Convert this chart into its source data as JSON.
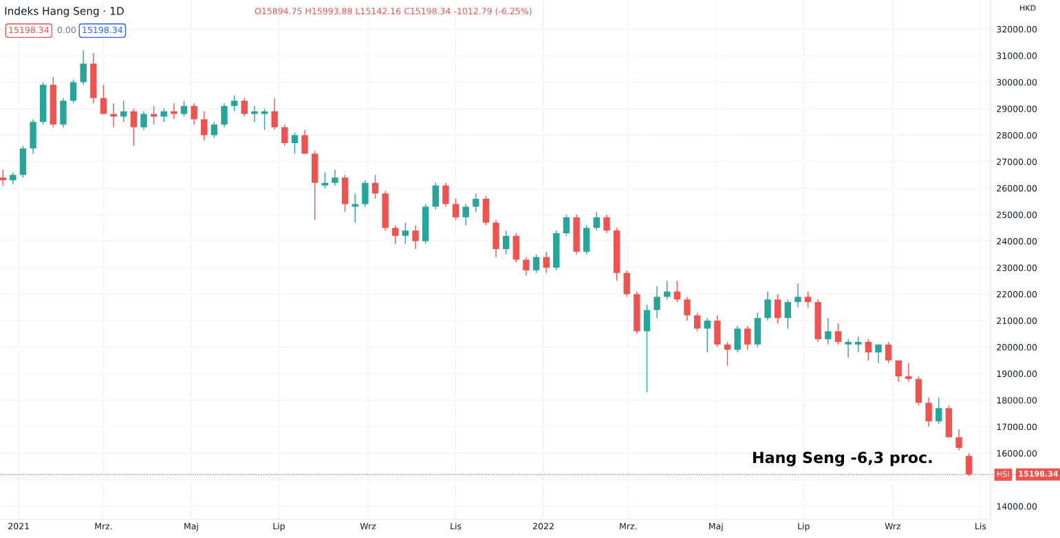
{
  "chart_data": {
    "type": "candlestick",
    "title": "Indeks Hang Seng · 1D",
    "annotations": [
      "O15894.75 H15993.88 L15142.16 C15198.34 -1012.79 (-6.25%)",
      "15198.34",
      "0.00",
      "15198.34",
      "HKD",
      "HSI",
      "Hang Seng -6,3 proc."
    ],
    "x": [
      "2020-12-21",
      "2020-12-28",
      "2021-01-04",
      "2021-01-11",
      "2021-01-18",
      "2021-01-25",
      "2021-02-01",
      "2021-02-08",
      "2021-02-15",
      "2021-02-22",
      "2021-03-01",
      "2021-03-08",
      "2021-03-15",
      "2021-03-22",
      "2021-03-29",
      "2021-04-05",
      "2021-04-12",
      "2021-04-19",
      "2021-04-26",
      "2021-05-03",
      "2021-05-10",
      "2021-05-17",
      "2021-05-24",
      "2021-05-31",
      "2021-06-07",
      "2021-06-14",
      "2021-06-21",
      "2021-06-28",
      "2021-07-05",
      "2021-07-12",
      "2021-07-19",
      "2021-07-26",
      "2021-08-02",
      "2021-08-09",
      "2021-08-16",
      "2021-08-23",
      "2021-08-30",
      "2021-09-06",
      "2021-09-13",
      "2021-09-20",
      "2021-09-27",
      "2021-10-04",
      "2021-10-11",
      "2021-10-18",
      "2021-10-25",
      "2021-11-01",
      "2021-11-08",
      "2021-11-15",
      "2021-11-22",
      "2021-11-29",
      "2021-12-06",
      "2021-12-13",
      "2021-12-20",
      "2021-12-27",
      "2022-01-03",
      "2022-01-10",
      "2022-01-17",
      "2022-01-24",
      "2022-01-31",
      "2022-02-07",
      "2022-02-14",
      "2022-02-21",
      "2022-02-28",
      "2022-03-07",
      "2022-03-14",
      "2022-03-21",
      "2022-03-28",
      "2022-04-04",
      "2022-04-11",
      "2022-04-18",
      "2022-04-25",
      "2022-05-02",
      "2022-05-09",
      "2022-05-16",
      "2022-05-23",
      "2022-05-30",
      "2022-06-06",
      "2022-06-13",
      "2022-06-20",
      "2022-06-27",
      "2022-07-04",
      "2022-07-11",
      "2022-07-18",
      "2022-07-25",
      "2022-08-01",
      "2022-08-08",
      "2022-08-15",
      "2022-08-22",
      "2022-08-29",
      "2022-09-05",
      "2022-09-12",
      "2022-09-19",
      "2022-09-26",
      "2022-10-03",
      "2022-10-10",
      "2022-10-17",
      "2022-10-24"
    ],
    "ohlc": [
      [
        26400,
        26700,
        26100,
        26300
      ],
      [
        26300,
        26600,
        26150,
        26500
      ],
      [
        26500,
        27600,
        26400,
        27500
      ],
      [
        27500,
        28600,
        27300,
        28500
      ],
      [
        28500,
        30000,
        28400,
        29900
      ],
      [
        29900,
        30200,
        28300,
        28400
      ],
      [
        28400,
        29400,
        28300,
        29300
      ],
      [
        29300,
        30100,
        29200,
        30000
      ],
      [
        30000,
        31200,
        29900,
        30700
      ],
      [
        30700,
        31100,
        29200,
        29400
      ],
      [
        29400,
        29900,
        28800,
        28800
      ],
      [
        28800,
        29200,
        28300,
        28700
      ],
      [
        28700,
        29300,
        28500,
        28900
      ],
      [
        28900,
        29000,
        27600,
        28300
      ],
      [
        28300,
        28900,
        28200,
        28800
      ],
      [
        28800,
        29100,
        28400,
        28700
      ],
      [
        28700,
        29000,
        28500,
        28900
      ],
      [
        28900,
        29200,
        28600,
        28800
      ],
      [
        28800,
        29300,
        28700,
        29100
      ],
      [
        29100,
        29200,
        28400,
        28600
      ],
      [
        28600,
        28900,
        27800,
        28000
      ],
      [
        28000,
        28500,
        27900,
        28400
      ],
      [
        28400,
        29200,
        28300,
        29100
      ],
      [
        29100,
        29500,
        28900,
        29300
      ],
      [
        29300,
        29400,
        28700,
        28800
      ],
      [
        28800,
        29100,
        28500,
        28900
      ],
      [
        28800,
        29000,
        28200,
        28900
      ],
      [
        28900,
        29400,
        28200,
        28300
      ],
      [
        28300,
        28400,
        27600,
        27700
      ],
      [
        27700,
        28100,
        27300,
        28000
      ],
      [
        28000,
        28200,
        27300,
        27300
      ],
      [
        27300,
        27400,
        24800,
        26200
      ],
      [
        26100,
        26600,
        26000,
        26200
      ],
      [
        26200,
        26700,
        26100,
        26400
      ],
      [
        26400,
        26500,
        25100,
        25400
      ],
      [
        25300,
        25800,
        24700,
        25400
      ],
      [
        25400,
        26300,
        25300,
        26200
      ],
      [
        26200,
        26500,
        25600,
        25800
      ],
      [
        25800,
        25900,
        24400,
        24500
      ],
      [
        24500,
        24600,
        23900,
        24200
      ],
      [
        24200,
        24700,
        23900,
        24400
      ],
      [
        24400,
        24600,
        23700,
        24000
      ],
      [
        24000,
        25400,
        23900,
        25300
      ],
      [
        25300,
        26200,
        25200,
        26100
      ],
      [
        26100,
        26200,
        25300,
        25400
      ],
      [
        25400,
        25600,
        24800,
        24900
      ],
      [
        24900,
        25400,
        24600,
        25300
      ],
      [
        25300,
        25800,
        25100,
        25600
      ],
      [
        25600,
        25700,
        24600,
        24700
      ],
      [
        24700,
        24800,
        23400,
        23700
      ],
      [
        23700,
        24400,
        23500,
        24200
      ],
      [
        24200,
        24300,
        23200,
        23300
      ],
      [
        23300,
        23400,
        22700,
        22900
      ],
      [
        22900,
        23500,
        22800,
        23400
      ],
      [
        23400,
        23600,
        22800,
        23000
      ],
      [
        23000,
        24400,
        22900,
        24300
      ],
      [
        24300,
        25000,
        24200,
        24900
      ],
      [
        24900,
        25000,
        23500,
        23600
      ],
      [
        23600,
        24600,
        23500,
        24500
      ],
      [
        24500,
        25100,
        24400,
        24900
      ],
      [
        24900,
        25000,
        24300,
        24400
      ],
      [
        24400,
        24500,
        22500,
        22800
      ],
      [
        22800,
        22900,
        21900,
        22000
      ],
      [
        22000,
        22100,
        20500,
        20600
      ],
      [
        20600,
        21600,
        18300,
        21400
      ],
      [
        21400,
        22300,
        21100,
        21900
      ],
      [
        21900,
        22500,
        21800,
        22100
      ],
      [
        22100,
        22500,
        21700,
        21800
      ],
      [
        21800,
        21900,
        21000,
        21200
      ],
      [
        21200,
        21300,
        20600,
        20700
      ],
      [
        20700,
        21100,
        19800,
        21000
      ],
      [
        21000,
        21200,
        20000,
        20100
      ],
      [
        20100,
        20200,
        19300,
        19900
      ],
      [
        19900,
        20800,
        19800,
        20700
      ],
      [
        20700,
        20800,
        19900,
        20100
      ],
      [
        20100,
        21300,
        20000,
        21100
      ],
      [
        21100,
        22100,
        21000,
        21800
      ],
      [
        21800,
        22000,
        20900,
        21100
      ],
      [
        21100,
        21800,
        20700,
        21700
      ],
      [
        21700,
        22400,
        21500,
        21900
      ],
      [
        21900,
        22100,
        21500,
        21700
      ],
      [
        21700,
        21800,
        20200,
        20300
      ],
      [
        20300,
        21100,
        20100,
        20600
      ],
      [
        20600,
        20900,
        20100,
        20200
      ],
      [
        20100,
        20300,
        19600,
        20200
      ],
      [
        20100,
        20400,
        19800,
        20200
      ],
      [
        20200,
        20300,
        19500,
        19800
      ],
      [
        19800,
        20100,
        19400,
        20100
      ],
      [
        20100,
        20200,
        19400,
        19500
      ],
      [
        19500,
        19500,
        18700,
        18900
      ],
      [
        18900,
        19400,
        18700,
        18800
      ],
      [
        18800,
        18900,
        17800,
        17900
      ],
      [
        17900,
        18100,
        17000,
        17200
      ],
      [
        17200,
        18100,
        17100,
        17700
      ],
      [
        17700,
        17800,
        16600,
        16600
      ],
      [
        16600,
        16900,
        16100,
        16200
      ],
      [
        15894.75,
        15993.88,
        15142.16,
        15198.34
      ]
    ],
    "colors": [
      "#ef5350",
      "#26a69a",
      "#26a69a",
      "#26a69a",
      "#26a69a",
      "#ef5350",
      "#26a69a",
      "#26a69a",
      "#26a69a",
      "#ef5350",
      "#ef5350",
      "#ef5350",
      "#26a69a",
      "#ef5350",
      "#26a69a",
      "#ef5350",
      "#26a69a",
      "#ef5350",
      "#26a69a",
      "#ef5350",
      "#ef5350",
      "#26a69a",
      "#26a69a",
      "#26a69a",
      "#ef5350",
      "#26a69a",
      "#26a69a",
      "#ef5350",
      "#ef5350",
      "#26a69a",
      "#ef5350",
      "#ef5350",
      "#26a69a",
      "#26a69a",
      "#ef5350",
      "#26a69a",
      "#26a69a",
      "#ef5350",
      "#ef5350",
      "#ef5350",
      "#26a69a",
      "#ef5350",
      "#26a69a",
      "#26a69a",
      "#ef5350",
      "#ef5350",
      "#26a69a",
      "#26a69a",
      "#ef5350",
      "#ef5350",
      "#26a69a",
      "#ef5350",
      "#ef5350",
      "#26a69a",
      "#ef5350",
      "#26a69a",
      "#26a69a",
      "#ef5350",
      "#26a69a",
      "#26a69a",
      "#ef5350",
      "#ef5350",
      "#ef5350",
      "#ef5350",
      "#26a69a",
      "#26a69a",
      "#26a69a",
      "#ef5350",
      "#ef5350",
      "#ef5350",
      "#26a69a",
      "#ef5350",
      "#ef5350",
      "#26a69a",
      "#ef5350",
      "#26a69a",
      "#26a69a",
      "#ef5350",
      "#26a69a",
      "#26a69a",
      "#ef5350",
      "#ef5350",
      "#26a69a",
      "#ef5350",
      "#26a69a",
      "#26a69a",
      "#ef5350",
      "#26a69a",
      "#ef5350",
      "#ef5350",
      "#ef5350",
      "#ef5350",
      "#ef5350",
      "#26a69a",
      "#ef5350",
      "#ef5350",
      "#ef5350"
    ],
    "xlim": [
      "2020-12-19",
      "2022-11-08"
    ],
    "xticks": [
      {
        "value": "2021-01-01",
        "label": "2021"
      },
      {
        "value": "2021-03-01",
        "label": "Mrz."
      },
      {
        "value": "2021-05-01",
        "label": "Maj"
      },
      {
        "value": "2021-07-01",
        "label": "Lip"
      },
      {
        "value": "2021-09-01",
        "label": "Wrz"
      },
      {
        "value": "2021-11-01",
        "label": "Lis"
      },
      {
        "value": "2022-01-01",
        "label": "2022"
      },
      {
        "value": "2022-03-01",
        "label": "Mrz."
      },
      {
        "value": "2022-05-01",
        "label": "Maj"
      },
      {
        "value": "2022-07-01",
        "label": "Lip"
      },
      {
        "value": "2022-09-01",
        "label": "Wrz"
      },
      {
        "value": "2022-11-01",
        "label": "Lis"
      }
    ],
    "ylim": [
      13500,
      33100
    ],
    "yticks": [
      {
        "value": 14000,
        "label": "14000.00"
      },
      {
        "value": 15000,
        "label": null
      },
      {
        "value": 16000,
        "label": "16000.00"
      },
      {
        "value": 17000,
        "label": "17000.00"
      },
      {
        "value": 18000,
        "label": "18000.00"
      },
      {
        "value": 19000,
        "label": "19000.00"
      },
      {
        "value": 20000,
        "label": "20000.00"
      },
      {
        "value": 21000,
        "label": "21000.00"
      },
      {
        "value": 22000,
        "label": "22000.00"
      },
      {
        "value": 23000,
        "label": "23000.00"
      },
      {
        "value": 24000,
        "label": "24000.00"
      },
      {
        "value": 25000,
        "label": "25000.00"
      },
      {
        "value": 26000,
        "label": "26000.00"
      },
      {
        "value": 27000,
        "label": "27000.00"
      },
      {
        "value": 28000,
        "label": "28000.00"
      },
      {
        "value": 29000,
        "label": "29000.00"
      },
      {
        "value": 30000,
        "label": "30000.00"
      },
      {
        "value": 31000,
        "label": "31000.00"
      },
      {
        "value": 32000,
        "label": "32000.00"
      }
    ],
    "ref_lines": [
      {
        "axis": "y",
        "value": 15198.34,
        "label": "15198.34",
        "color": "#ef5350",
        "line_style": "dotted"
      }
    ],
    "grid": true
  }
}
